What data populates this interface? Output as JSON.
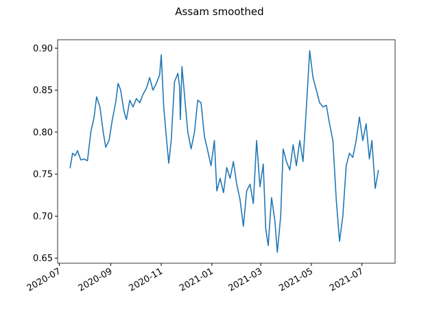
{
  "chart_data": {
    "type": "line",
    "title": "Assam smoothed",
    "color": "#1f77b4",
    "x": [
      "2020-07-14",
      "2020-07-17",
      "2020-07-20",
      "2020-07-23",
      "2020-07-27",
      "2020-07-31",
      "2020-08-04",
      "2020-08-08",
      "2020-08-12",
      "2020-08-15",
      "2020-08-19",
      "2020-08-23",
      "2020-08-26",
      "2020-08-30",
      "2020-09-03",
      "2020-09-07",
      "2020-09-10",
      "2020-09-13",
      "2020-09-17",
      "2020-09-20",
      "2020-09-24",
      "2020-09-28",
      "2020-10-02",
      "2020-10-06",
      "2020-10-10",
      "2020-10-14",
      "2020-10-18",
      "2020-10-22",
      "2020-10-26",
      "2020-10-30",
      "2020-11-01",
      "2020-11-04",
      "2020-11-07",
      "2020-11-10",
      "2020-11-13",
      "2020-11-17",
      "2020-11-21",
      "2020-11-23",
      "2020-11-24",
      "2020-11-26",
      "2020-12-03",
      "2020-12-07",
      "2020-12-11",
      "2020-12-15",
      "2020-12-19",
      "2020-12-23",
      "2020-12-27",
      "2020-12-31",
      "2021-01-04",
      "2021-01-07",
      "2021-01-11",
      "2021-01-15",
      "2021-01-19",
      "2021-01-23",
      "2021-01-27",
      "2021-01-31",
      "2021-02-04",
      "2021-02-08",
      "2021-02-12",
      "2021-02-16",
      "2021-02-20",
      "2021-02-24",
      "2021-02-28",
      "2021-03-04",
      "2021-03-07",
      "2021-03-10",
      "2021-03-14",
      "2021-03-18",
      "2021-03-21",
      "2021-03-25",
      "2021-03-28",
      "2021-04-01",
      "2021-04-05",
      "2021-04-09",
      "2021-04-13",
      "2021-04-17",
      "2021-04-21",
      "2021-04-25",
      "2021-04-29",
      "2021-05-03",
      "2021-05-07",
      "2021-05-11",
      "2021-05-15",
      "2021-05-19",
      "2021-05-23",
      "2021-05-27",
      "2021-05-31",
      "2021-06-04",
      "2021-06-08",
      "2021-06-12",
      "2021-06-16",
      "2021-06-20",
      "2021-06-24",
      "2021-06-28",
      "2021-07-02",
      "2021-07-06",
      "2021-07-10",
      "2021-07-13",
      "2021-07-17",
      "2021-07-21"
    ],
    "values": [
      0.757,
      0.775,
      0.772,
      0.778,
      0.767,
      0.768,
      0.766,
      0.8,
      0.818,
      0.842,
      0.83,
      0.8,
      0.782,
      0.79,
      0.815,
      0.835,
      0.858,
      0.85,
      0.825,
      0.815,
      0.838,
      0.83,
      0.84,
      0.835,
      0.845,
      0.852,
      0.865,
      0.85,
      0.858,
      0.868,
      0.892,
      0.83,
      0.795,
      0.763,
      0.79,
      0.86,
      0.87,
      0.855,
      0.815,
      0.878,
      0.8,
      0.78,
      0.8,
      0.838,
      0.835,
      0.795,
      0.778,
      0.76,
      0.79,
      0.73,
      0.745,
      0.728,
      0.758,
      0.745,
      0.765,
      0.738,
      0.72,
      0.688,
      0.73,
      0.738,
      0.715,
      0.79,
      0.735,
      0.762,
      0.685,
      0.665,
      0.722,
      0.695,
      0.657,
      0.7,
      0.78,
      0.765,
      0.755,
      0.785,
      0.76,
      0.79,
      0.765,
      0.83,
      0.897,
      0.865,
      0.85,
      0.835,
      0.83,
      0.832,
      0.81,
      0.79,
      0.72,
      0.67,
      0.7,
      0.76,
      0.775,
      0.77,
      0.79,
      0.818,
      0.79,
      0.81,
      0.768,
      0.79,
      0.733,
      0.755
    ],
    "xlim": [
      "2020-06-29",
      "2021-08-10"
    ],
    "xticks": [
      {
        "value": "2020-07",
        "label": "2020-07"
      },
      {
        "value": "2020-09",
        "label": "2020-09"
      },
      {
        "value": "2020-11",
        "label": "2020-11"
      },
      {
        "value": "2021-01",
        "label": "2021-01"
      },
      {
        "value": "2021-03",
        "label": "2021-03"
      },
      {
        "value": "2021-05",
        "label": "2021-05"
      },
      {
        "value": "2021-07",
        "label": "2021-07"
      }
    ],
    "ylim": [
      0.644,
      0.91
    ],
    "yticks": [
      0.65,
      {
        "value": 0.7,
        "label": "0.70"
      },
      0.75,
      {
        "value": 0.8,
        "label": "0.80"
      },
      0.85,
      {
        "value": 0.9,
        "label": "0.90"
      }
    ]
  }
}
